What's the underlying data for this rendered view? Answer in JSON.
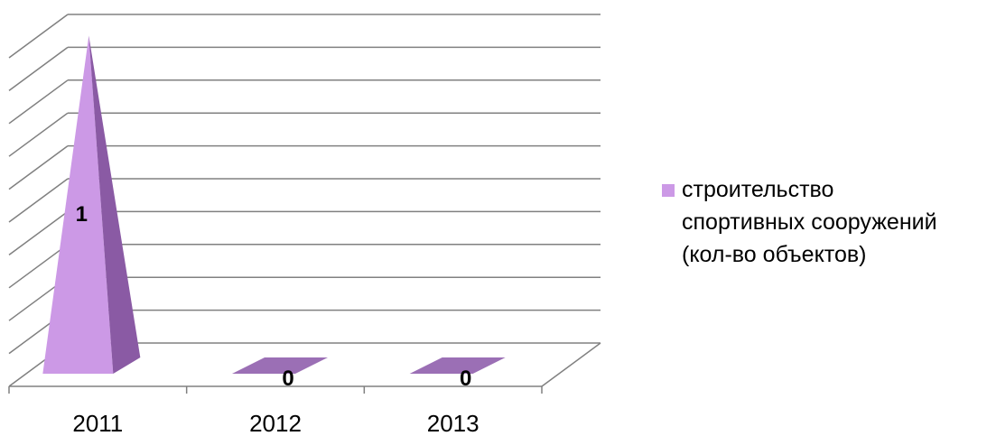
{
  "chart_data": {
    "type": "bar",
    "categories": [
      "2011",
      "2012",
      "2013"
    ],
    "series": [
      {
        "name": "строительство спортивных сооружений (кол-во объектов)",
        "values": [
          1,
          0,
          0
        ]
      }
    ],
    "ylim": [
      0,
      1.1
    ],
    "grid": true,
    "legend": "right",
    "colors": {
      "front": "#cc99e6",
      "side": "#8a5aa4",
      "top": "#9b6fb5",
      "grid": "#808080",
      "axis": "#808080"
    }
  },
  "legend": {
    "lines": [
      "строительство",
      "спортивных сооружений",
      "(кол-во объектов)"
    ]
  }
}
